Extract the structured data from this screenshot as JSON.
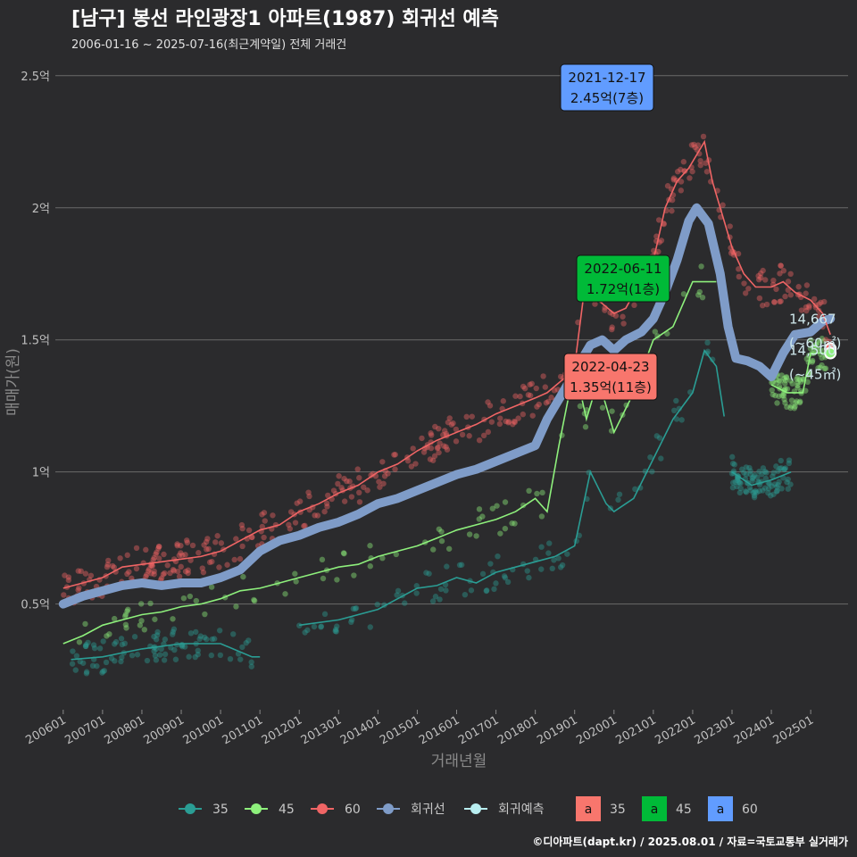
{
  "header": {
    "title": "[남구] 봉선 라인광장1 아파트(1987) 회귀선 예측",
    "subtitle": "2006-01-16 ~ 2025-07-16(최근계약일) 전체 거래건"
  },
  "credit": "©디아파트(dapt.kr) / 2025.08.01 / 자료=국토교통부 실거래가",
  "colors": {
    "s35": "#2a9d94",
    "s45": "#8ef07c",
    "s60": "#f06565",
    "regression": "#7f9cc8",
    "forecast": "#b8eef0",
    "box35": "#f8766d",
    "box45": "#00ba38",
    "box60": "#619cff"
  },
  "chart_data": {
    "type": "line",
    "xlabel": "거래년월",
    "ylabel": "매매가(원)",
    "x_ticks": [
      "200601",
      "200701",
      "200801",
      "200901",
      "201001",
      "201101",
      "201201",
      "201301",
      "201401",
      "201501",
      "201601",
      "201701",
      "201801",
      "201901",
      "202001",
      "202101",
      "202201",
      "202301",
      "202401",
      "202501"
    ],
    "y_ticks": [
      {
        "value": 0.5,
        "label": "0.5억"
      },
      {
        "value": 1.0,
        "label": "1억"
      },
      {
        "value": 1.5,
        "label": "1.5억"
      },
      {
        "value": 2.0,
        "label": "2억"
      },
      {
        "value": 2.5,
        "label": "2.5억"
      }
    ],
    "ylim": [
      0.1,
      2.55
    ],
    "grid": true,
    "series": [
      {
        "name": "35",
        "key": "s35",
        "x": [
          2006.2,
          2007.0,
          2008.0,
          2009.0,
          2010.0,
          2010.8,
          2011.0
        ],
        "y": [
          0.29,
          0.3,
          0.33,
          0.35,
          0.35,
          0.3,
          0.3
        ]
      },
      {
        "name": "35",
        "key": "s35",
        "x": [
          2012.0,
          2013.0,
          2014.0,
          2014.5,
          2015.0,
          2015.5,
          2016.0,
          2016.5,
          2017.0,
          2017.5,
          2018.0,
          2018.5,
          2019.0,
          2019.4,
          2019.8,
          2020.0,
          2020.5,
          2021.0,
          2021.5,
          2022.0,
          2022.3,
          2022.6,
          2022.8
        ],
        "y": [
          0.42,
          0.44,
          0.48,
          0.52,
          0.56,
          0.57,
          0.6,
          0.58,
          0.62,
          0.64,
          0.66,
          0.68,
          0.72,
          1.0,
          0.88,
          0.85,
          0.9,
          1.05,
          1.2,
          1.3,
          1.46,
          1.4,
          1.21
        ]
      },
      {
        "name": "35",
        "key": "s35",
        "x": [
          2023.0,
          2023.5,
          2024.0,
          2024.5
        ],
        "y": [
          1.0,
          0.95,
          0.97,
          1.0
        ]
      },
      {
        "name": "45",
        "key": "s45",
        "x": [
          2006.0,
          2006.5,
          2007.0,
          2007.5,
          2008.0,
          2008.5,
          2009.0,
          2009.5,
          2010.0,
          2010.5,
          2011.0,
          2011.5,
          2012.0,
          2012.5,
          2013.0,
          2013.5,
          2014.0,
          2014.5,
          2015.0,
          2015.5,
          2016.0,
          2016.5,
          2017.0,
          2017.5,
          2018.0,
          2018.3,
          2018.6,
          2019.0,
          2019.3,
          2019.6,
          2020.0,
          2020.5,
          2021.0,
          2021.5,
          2022.0,
          2022.4,
          2022.6
        ],
        "y": [
          0.35,
          0.38,
          0.42,
          0.44,
          0.46,
          0.47,
          0.49,
          0.5,
          0.52,
          0.55,
          0.56,
          0.58,
          0.6,
          0.62,
          0.64,
          0.65,
          0.68,
          0.7,
          0.72,
          0.75,
          0.78,
          0.8,
          0.82,
          0.85,
          0.9,
          0.85,
          1.1,
          1.4,
          1.2,
          1.35,
          1.15,
          1.3,
          1.5,
          1.55,
          1.72,
          1.72,
          1.72
        ]
      },
      {
        "name": "45",
        "key": "s45",
        "x": [
          2024.0,
          2024.4,
          2024.8,
          2025.0,
          2025.4
        ],
        "y": [
          1.33,
          1.3,
          1.3,
          1.45,
          1.45
        ]
      },
      {
        "name": "60",
        "key": "s60",
        "x": [
          2006.0,
          2006.5,
          2007.0,
          2007.5,
          2008.0,
          2008.5,
          2009.0,
          2009.5,
          2010.0,
          2010.5,
          2011.0,
          2011.5,
          2012.0,
          2012.5,
          2013.0,
          2013.5,
          2014.0,
          2014.5,
          2015.0,
          2015.5,
          2016.0,
          2016.5,
          2017.0,
          2017.5,
          2018.0,
          2018.3,
          2018.7,
          2019.0,
          2019.3,
          2019.6,
          2020.0,
          2020.3,
          2020.6,
          2021.0,
          2021.3,
          2021.6,
          2021.9,
          2022.1,
          2022.3,
          2022.5,
          2022.8,
          2023.0,
          2023.3,
          2023.6,
          2024.0,
          2024.3,
          2024.6,
          2025.0,
          2025.3,
          2025.5
        ],
        "y": [
          0.56,
          0.58,
          0.6,
          0.64,
          0.65,
          0.66,
          0.67,
          0.68,
          0.7,
          0.74,
          0.78,
          0.8,
          0.85,
          0.88,
          0.92,
          0.95,
          1.0,
          1.03,
          1.08,
          1.12,
          1.15,
          1.18,
          1.22,
          1.25,
          1.28,
          1.3,
          1.35,
          1.4,
          1.75,
          1.65,
          1.6,
          1.62,
          1.7,
          1.8,
          2.0,
          2.1,
          2.15,
          2.2,
          2.25,
          2.1,
          1.95,
          1.85,
          1.75,
          1.7,
          1.7,
          1.72,
          1.68,
          1.65,
          1.6,
          1.52
        ]
      }
    ],
    "regression": {
      "name": "회귀선",
      "x": [
        2006.0,
        2006.5,
        2007.0,
        2007.5,
        2008.0,
        2008.5,
        2009.0,
        2009.5,
        2010.0,
        2010.5,
        2011.0,
        2011.5,
        2012.0,
        2012.5,
        2013.0,
        2013.5,
        2014.0,
        2014.5,
        2015.0,
        2015.5,
        2016.0,
        2016.5,
        2017.0,
        2017.5,
        2018.0,
        2018.3,
        2018.7,
        2019.0,
        2019.4,
        2019.7,
        2020.0,
        2020.3,
        2020.7,
        2021.0,
        2021.3,
        2021.6,
        2021.9,
        2022.1,
        2022.4,
        2022.7,
        2022.9,
        2023.1,
        2023.4,
        2023.7,
        2024.0,
        2024.3,
        2024.6,
        2025.0,
        2025.3,
        2025.5
      ],
      "y": [
        0.5,
        0.53,
        0.55,
        0.57,
        0.58,
        0.57,
        0.58,
        0.58,
        0.6,
        0.63,
        0.7,
        0.74,
        0.76,
        0.79,
        0.81,
        0.84,
        0.88,
        0.9,
        0.93,
        0.96,
        0.99,
        1.01,
        1.04,
        1.07,
        1.1,
        1.2,
        1.3,
        1.38,
        1.48,
        1.5,
        1.46,
        1.5,
        1.53,
        1.58,
        1.68,
        1.8,
        1.95,
        2.0,
        1.94,
        1.75,
        1.55,
        1.43,
        1.42,
        1.4,
        1.36,
        1.45,
        1.52,
        1.53,
        1.57,
        1.58
      ]
    },
    "forecast": {
      "name": "회귀예측",
      "points": [
        {
          "x": 2025.5,
          "y": 1.4667,
          "key": "s60"
        },
        {
          "x": 2025.5,
          "y": 1.45,
          "key": "s45"
        }
      ]
    },
    "annotations": [
      {
        "date": "2021-12-17",
        "price": "2.45억(7층)",
        "x": 2021.96,
        "y": 2.45,
        "key": "box60"
      },
      {
        "date": "2022-06-11",
        "price": "1.72억(1층)",
        "x": 2022.44,
        "y": 1.72,
        "key": "box45"
      },
      {
        "date": "2022-04-23",
        "price": "1.35억(11층)",
        "x": 2022.31,
        "y": 1.35,
        "key": "box35"
      }
    ],
    "end_labels": [
      {
        "value": "14,667",
        "area": "(~60㎡)",
        "y": 1.4667
      },
      {
        "value": "14,500",
        "area": "(~45㎡)",
        "y": 1.45
      }
    ],
    "legend": {
      "placement": "bottom",
      "items": [
        {
          "label": "35",
          "key": "s35",
          "kind": "line"
        },
        {
          "label": "45",
          "key": "s45",
          "kind": "line"
        },
        {
          "label": "60",
          "key": "s60",
          "kind": "line"
        },
        {
          "label": "회귀선",
          "key": "regression",
          "kind": "line"
        },
        {
          "label": "회귀예측",
          "key": "forecast",
          "kind": "line"
        },
        {
          "label": "35",
          "key": "box35",
          "kind": "box",
          "glyph": "a"
        },
        {
          "label": "45",
          "key": "box45",
          "kind": "box",
          "glyph": "a"
        },
        {
          "label": "60",
          "key": "box60",
          "kind": "box",
          "glyph": "a"
        }
      ]
    }
  }
}
